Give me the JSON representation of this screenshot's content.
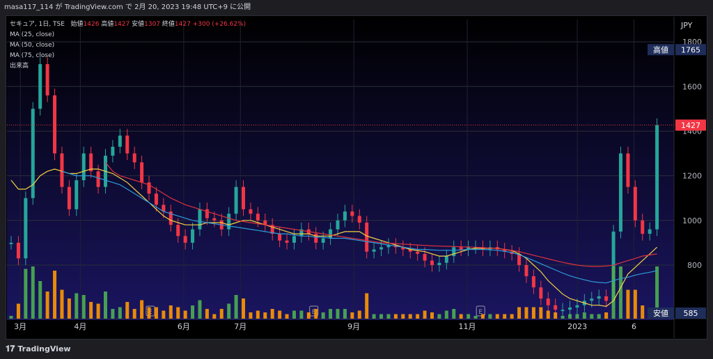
{
  "header": {
    "publisher_line": "masa117_114 が TradingView.com で 2月 20, 2023 19:48 UTC+9 に公開"
  },
  "legend": {
    "symbol_line": "セキュア, 1日, TSE",
    "open_label": "始値",
    "open_value": "1426",
    "high_label": "高値",
    "high_value": "1427",
    "low_label": "安値",
    "low_value": "1307",
    "close_label": "終値",
    "close_value": "1427",
    "change_value": "+300 (+26.62%)",
    "ma25": "MA (25, close)",
    "ma50": "MA (50, close)",
    "ma75": "MA (75, close)",
    "volume": "出来高"
  },
  "axis": {
    "currency": "JPY"
  },
  "badges": {
    "high_label": "高値",
    "high_value": "1765",
    "last_value": "1427",
    "low_label": "安値",
    "low_value": "585"
  },
  "footer": {
    "brand": "TradingView"
  },
  "colors": {
    "up": "#26a69a",
    "down": "#f23645",
    "ma25": "#f5d142",
    "ma50": "#2d9cdb",
    "ma75": "#e0323c",
    "vol_up": "#4caf50",
    "vol_down": "#ff9800"
  },
  "chart_data": {
    "type": "line",
    "title": "セキュア, 1日, TSE",
    "ylabel": "JPY",
    "ylim": [
      560,
      1900
    ],
    "y_ticks": [
      "1800",
      "1600",
      "1400",
      "1200",
      "1000",
      "800"
    ],
    "x_ticks": [
      "3月",
      "4月",
      "6月",
      "7月",
      "9月",
      "11月",
      "2023",
      "6"
    ],
    "earnings_markers": [
      "E",
      "E",
      "E"
    ],
    "series": [
      {
        "name": "close",
        "values": [
          900,
          830,
          1100,
          1500,
          1700,
          1560,
          1300,
          1150,
          1050,
          1180,
          1300,
          1220,
          1150,
          1290,
          1330,
          1380,
          1300,
          1260,
          1170,
          1120,
          1070,
          1040,
          980,
          930,
          900,
          960,
          1050,
          1010,
          1000,
          960,
          1030,
          1150,
          1050,
          1030,
          1000,
          980,
          940,
          910,
          900,
          930,
          960,
          940,
          900,
          920,
          960,
          1000,
          1040,
          1020,
          990,
          860,
          870,
          880,
          890,
          880,
          870,
          860,
          850,
          820,
          800,
          810,
          840,
          880,
          870,
          880,
          880,
          870,
          880,
          870,
          860,
          850,
          800,
          750,
          700,
          650,
          620,
          600,
          600,
          610,
          620,
          640,
          650,
          660,
          640,
          950,
          1300,
          1150,
          1000,
          940,
          960,
          1427
        ]
      },
      {
        "name": "MA (25, close)",
        "values": [
          1180,
          1140,
          1140,
          1160,
          1200,
          1220,
          1230,
          1220,
          1210,
          1210,
          1220,
          1230,
          1230,
          1220,
          1210,
          1190,
          1170,
          1140,
          1110,
          1080,
          1050,
          1020,
          1000,
          990,
          980,
          980,
          980,
          990,
          990,
          990,
          980,
          990,
          1000,
          1000,
          990,
          980,
          970,
          960,
          950,
          940,
          940,
          940,
          930,
          930,
          930,
          940,
          950,
          950,
          950,
          930,
          920,
          910,
          900,
          890,
          880,
          870,
          865,
          860,
          850,
          840,
          840,
          850,
          860,
          870,
          875,
          875,
          875,
          875,
          870,
          865,
          850,
          830,
          800,
          770,
          730,
          700,
          670,
          650,
          640,
          630,
          620,
          620,
          615,
          640,
          700,
          760,
          790,
          820,
          850,
          880
        ]
      },
      {
        "name": "MA (50, close)",
        "values": [
          null,
          null,
          null,
          null,
          null,
          null,
          null,
          1220,
          1210,
          1200,
          1200,
          1200,
          1190,
          1180,
          1170,
          1160,
          1140,
          1120,
          1100,
          1080,
          1060,
          1040,
          1030,
          1020,
          1010,
          1000,
          995,
          990,
          985,
          980,
          975,
          970,
          965,
          960,
          955,
          950,
          945,
          940,
          940,
          935,
          930,
          930,
          925,
          925,
          920,
          920,
          920,
          915,
          910,
          905,
          900,
          895,
          890,
          885,
          880,
          875,
          870,
          870,
          868,
          866,
          866,
          866,
          868,
          870,
          870,
          870,
          868,
          866,
          862,
          856,
          846,
          834,
          820,
          806,
          792,
          778,
          764,
          752,
          742,
          734,
          726,
          722,
          720,
          730,
          740,
          745,
          755,
          762,
          768,
          775
        ]
      },
      {
        "name": "MA (75, close)",
        "values": [
          null,
          null,
          null,
          null,
          null,
          null,
          null,
          null,
          null,
          null,
          null,
          null,
          null,
          1260,
          1220,
          1200,
          1190,
          1180,
          1170,
          1160,
          1140,
          1120,
          1100,
          1085,
          1070,
          1060,
          1050,
          1040,
          1030,
          1020,
          1010,
          1000,
          995,
          990,
          985,
          980,
          975,
          970,
          965,
          960,
          955,
          950,
          945,
          940,
          935,
          930,
          925,
          920,
          915,
          910,
          905,
          900,
          898,
          896,
          894,
          892,
          890,
          888,
          886,
          885,
          884,
          883,
          882,
          881,
          880,
          878,
          876,
          874,
          870,
          866,
          860,
          852,
          844,
          836,
          828,
          820,
          812,
          806,
          800,
          796,
          794,
          794,
          796,
          800,
          810,
          820,
          830,
          840,
          845,
          850
        ]
      }
    ]
  }
}
